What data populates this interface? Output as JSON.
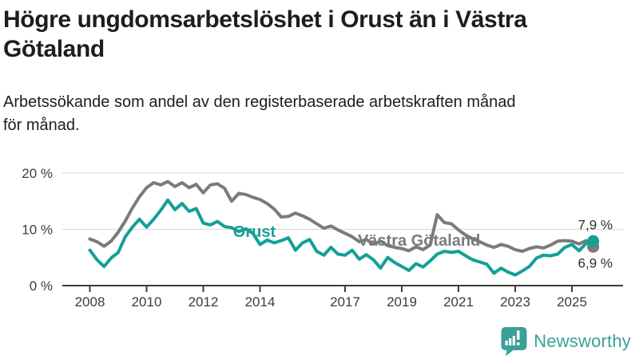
{
  "title": {
    "text": "Högre ungdomsarbetslöshet i Orust än i Västra Götaland",
    "lines": [
      "Högre ungdomsarbetslöshet i Orust än i Västra",
      "Götaland"
    ]
  },
  "subtitle": {
    "text": "Arbetssökande som andel av den registerbaserade arbetskraften månad för månad.",
    "lines": [
      "Arbetssökande som andel av den registerbaserade arbetskraften månad",
      "för månad."
    ]
  },
  "chart_data": {
    "type": "line",
    "unit": "%",
    "x_start": 2008.0,
    "x_step_years": 0.25,
    "x_end": 2025.75,
    "x_ticks": [
      2008,
      2010,
      2012,
      2014,
      2017,
      2019,
      2021,
      2023,
      2025
    ],
    "y_ticks": [
      {
        "value": 0,
        "label": "0 %"
      },
      {
        "value": 10,
        "label": "10 %"
      },
      {
        "value": 20,
        "label": "20 %"
      }
    ],
    "ylim": [
      0,
      21
    ],
    "grid": "horizontal",
    "legend_position": "inline-labels",
    "series": [
      {
        "name": "Västra Götaland",
        "color": "#7B7B7B",
        "end_value_label": "6,9 %",
        "end_value": 6.9,
        "end_label_position": "below",
        "inline_label": {
          "x": 2017.45,
          "y": 7.1
        },
        "values": [
          8.3,
          7.8,
          7.0,
          7.9,
          9.5,
          11.5,
          13.8,
          15.8,
          17.4,
          18.3,
          17.9,
          18.5,
          17.6,
          18.3,
          17.4,
          18.0,
          16.5,
          17.9,
          18.1,
          17.3,
          15.0,
          16.4,
          16.2,
          15.7,
          15.3,
          14.6,
          13.6,
          12.2,
          12.3,
          12.9,
          12.4,
          11.8,
          11.0,
          10.2,
          10.6,
          9.9,
          9.3,
          8.7,
          7.8,
          8.2,
          7.4,
          7.9,
          7.1,
          6.8,
          6.6,
          6.2,
          6.9,
          6.4,
          7.2,
          12.6,
          11.2,
          11.0,
          9.9,
          9.0,
          8.3,
          7.8,
          7.2,
          6.8,
          7.3,
          7.0,
          6.4,
          6.1,
          6.6,
          6.9,
          6.7,
          7.2,
          7.9,
          8.0,
          7.9,
          7.4,
          8.0,
          6.9
        ]
      },
      {
        "name": "Orust",
        "color": "#14A096",
        "end_value_label": "7,9 %",
        "end_value": 7.9,
        "end_label_position": "above",
        "inline_label": {
          "x": 2013.05,
          "y": 8.65
        },
        "values": [
          6.3,
          4.6,
          3.4,
          4.9,
          5.9,
          8.7,
          10.4,
          11.8,
          10.4,
          11.8,
          13.4,
          15.2,
          13.5,
          14.6,
          13.2,
          13.7,
          11.1,
          10.8,
          11.4,
          10.5,
          10.3,
          9.6,
          10.1,
          9.3,
          7.3,
          8.1,
          7.6,
          8.0,
          8.5,
          6.3,
          7.6,
          8.2,
          6.1,
          5.4,
          6.8,
          5.6,
          5.4,
          6.3,
          4.7,
          5.5,
          4.6,
          3.1,
          5.0,
          4.1,
          3.4,
          2.7,
          3.9,
          3.3,
          4.4,
          5.6,
          6.1,
          5.9,
          6.1,
          5.3,
          4.6,
          4.2,
          3.8,
          2.2,
          3.1,
          2.4,
          1.9,
          2.6,
          3.4,
          4.9,
          5.4,
          5.3,
          5.6,
          6.8,
          7.3,
          6.2,
          7.5,
          7.9
        ]
      }
    ]
  },
  "logo": {
    "label": "Newsworthy",
    "icon": "newsworthy-bar-chart-bubble-icon",
    "color": "#3AA098"
  }
}
